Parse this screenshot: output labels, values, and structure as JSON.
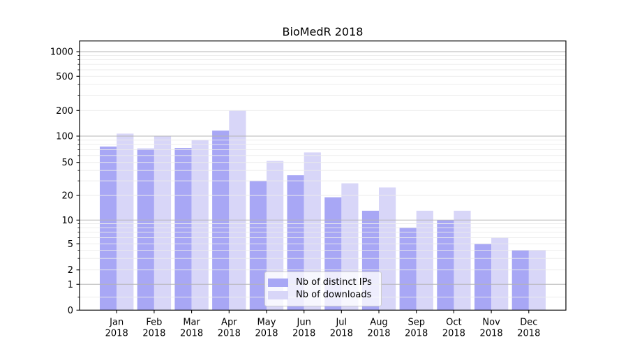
{
  "chart_data": {
    "type": "bar",
    "title": "BioMedR 2018",
    "categories": [
      "Jan",
      "Feb",
      "Mar",
      "Apr",
      "May",
      "Jun",
      "Jul",
      "Aug",
      "Sep",
      "Oct",
      "Nov",
      "Dec"
    ],
    "category_year": "2018",
    "series": [
      {
        "name": "Nb of distinct IPs",
        "color": "#a8a7f5",
        "values": [
          76,
          72,
          73,
          116,
          30,
          35,
          19,
          13,
          8,
          10,
          5,
          4
        ]
      },
      {
        "name": "Nb of downloads",
        "color": "#d8d6f8",
        "values": [
          107,
          100,
          90,
          200,
          52,
          65,
          28,
          25,
          13,
          13,
          6,
          4
        ]
      }
    ],
    "y_ticks": [
      0,
      1,
      2,
      5,
      10,
      20,
      50,
      100,
      200,
      500,
      1000
    ],
    "y_scale": "symlog",
    "ylim": [
      0,
      1340
    ],
    "xlabel": "",
    "ylabel": "",
    "grid": "on",
    "legend_position": "lower center",
    "colors": {
      "major_grid": "#b4b4b4",
      "minor_grid": "#ebebeb",
      "axis": "#000000",
      "background": "#ffffff"
    }
  }
}
